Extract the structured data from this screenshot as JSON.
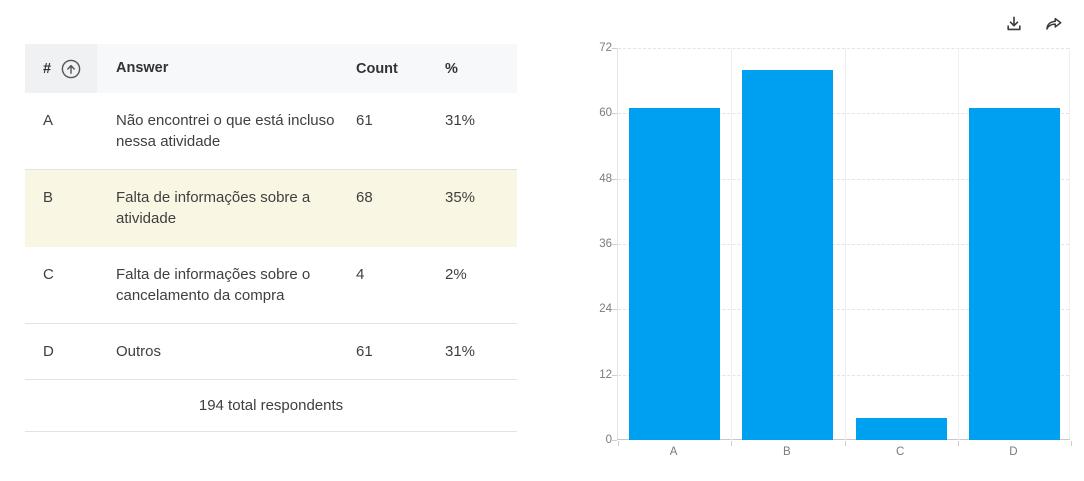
{
  "toolbar": {
    "icons": [
      {
        "name": "download-icon"
      },
      {
        "name": "share-icon"
      }
    ]
  },
  "table": {
    "headers": {
      "num": "#",
      "answer": "Answer",
      "count": "Count",
      "percent": "%"
    },
    "sort_icon": "sort-ascending-icon",
    "rows": [
      {
        "letter": "A",
        "answer": "Não encontrei o que está incluso nessa atividade",
        "count": "61",
        "percent": "31%",
        "highlighted": false
      },
      {
        "letter": "B",
        "answer": "Falta de informações sobre a atividade",
        "count": "68",
        "percent": "35%",
        "highlighted": true
      },
      {
        "letter": "C",
        "answer": "Falta de informações sobre o cancelamento da compra",
        "count": "4",
        "percent": "2%",
        "highlighted": false
      },
      {
        "letter": "D",
        "answer": "Outros",
        "count": "61",
        "percent": "31%",
        "highlighted": false
      }
    ],
    "footer": "194 total respondents"
  },
  "chart_data": {
    "type": "bar",
    "categories": [
      "A",
      "B",
      "C",
      "D"
    ],
    "values": [
      61,
      68,
      4,
      61
    ],
    "title": "",
    "xlabel": "",
    "ylabel": "",
    "ylim": [
      0,
      72
    ],
    "yticks": [
      0,
      12,
      24,
      36,
      48,
      60,
      72
    ],
    "grid": true,
    "legend": false,
    "bar_color": "#00a0f0",
    "highlight_color": "#faf6e4"
  }
}
